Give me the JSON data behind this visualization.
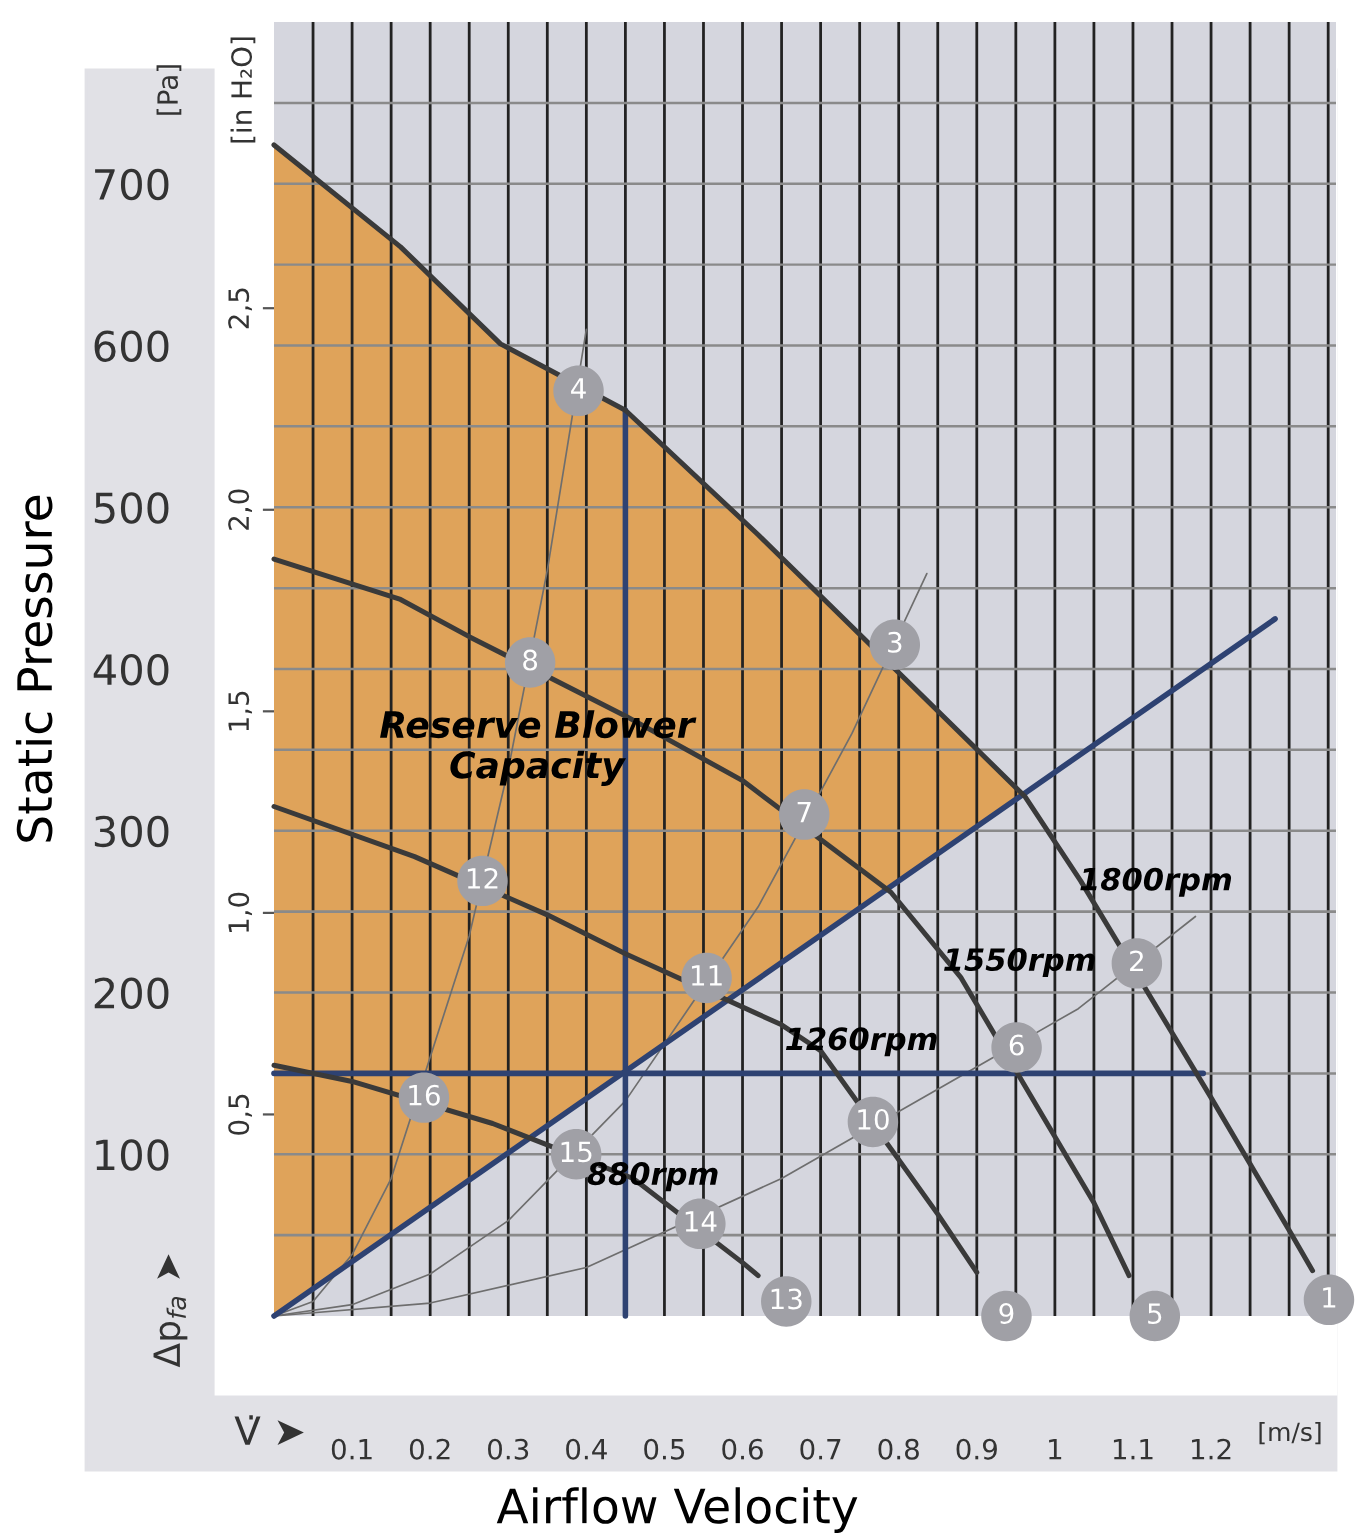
{
  "chart_data": {
    "type": "line",
    "xlabel": "Airflow Velocity",
    "ylabel": "Static Pressure",
    "xlim": [
      0,
      1.36
    ],
    "ylim": [
      0,
      800
    ],
    "y2lim": [
      0,
      3.21
    ],
    "xticks": [
      {
        "value": 0.05,
        "label": null
      },
      0.1,
      {
        "value": 0.15,
        "label": null
      },
      0.2,
      {
        "value": 0.25,
        "label": null
      },
      0.3,
      {
        "value": 0.35,
        "label": null
      },
      0.4,
      {
        "value": 0.45,
        "label": null
      },
      0.5,
      {
        "value": 0.55,
        "label": null
      },
      0.6,
      {
        "value": 0.65,
        "label": null
      },
      0.7,
      {
        "value": 0.75,
        "label": null
      },
      0.8,
      {
        "value": 0.85,
        "label": null
      },
      0.9,
      {
        "value": 0.95,
        "label": null
      },
      1,
      {
        "value": 1.05,
        "label": null
      },
      1.1,
      {
        "value": 1.15,
        "label": null
      },
      1.2,
      {
        "value": 1.25,
        "label": null
      },
      {
        "value": 1.3,
        "label": null
      },
      {
        "value": 1.35,
        "label": null
      }
    ],
    "yticks": [
      {
        "value": 50,
        "label": null
      },
      100,
      {
        "value": 150,
        "label": null
      },
      200,
      {
        "value": 250,
        "label": null
      },
      300,
      {
        "value": 350,
        "label": null
      },
      400,
      {
        "value": 450,
        "label": null
      },
      500,
      {
        "value": 550,
        "label": null
      },
      600,
      {
        "value": 650,
        "label": null
      },
      700,
      {
        "value": 750,
        "label": null
      }
    ],
    "y2ticks": [
      {
        "value": 0.5,
        "label": "0,5"
      },
      {
        "value": 1.0,
        "label": "1,0"
      },
      {
        "value": 1.5,
        "label": "1,5"
      },
      {
        "value": 2.0,
        "label": "2,0"
      },
      {
        "value": 2.5,
        "label": "2,5"
      }
    ],
    "grid": true,
    "legend": false,
    "annotations": [
      "[Pa]",
      "[in H₂O]",
      "[m/s]",
      "V̇ ➤",
      "Δp$_{fa}$ ➤",
      {
        "text": "1",
        "x": 1.351,
        "y": 10
      },
      {
        "text": "2",
        "x": 1.105,
        "y": 218
      },
      {
        "text": "3",
        "x": 0.795,
        "y": 415
      },
      {
        "text": "4",
        "x": 0.39,
        "y": 572
      },
      {
        "text": "5",
        "x": 1.128,
        "y": 0
      },
      {
        "text": "6",
        "x": 0.951,
        "y": 166
      },
      {
        "text": "7",
        "x": 0.679,
        "y": 310
      },
      {
        "text": "8",
        "x": 0.328,
        "y": 404
      },
      {
        "text": "9",
        "x": 0.938,
        "y": 0
      },
      {
        "text": "10",
        "x": 0.767,
        "y": 120
      },
      {
        "text": "11",
        "x": 0.554,
        "y": 209
      },
      {
        "text": "12",
        "x": 0.267,
        "y": 269
      },
      {
        "text": "13",
        "x": 0.656,
        "y": 9
      },
      {
        "text": "14",
        "x": 0.546,
        "y": 57
      },
      {
        "text": "15",
        "x": 0.387,
        "y": 100
      },
      {
        "text": "16",
        "x": 0.192,
        "y": 135
      }
    ],
    "series": [
      {
        "type": "area",
        "name": "Reserve Blower Capacity",
        "color": "#dfa35a",
        "x": [
          0,
          0.162,
          0.29,
          0.45,
          0.62,
          0.962
        ],
        "values": [
          724,
          661,
          601,
          560,
          483,
          321
        ]
      },
      {
        "color": "#6e6e6e",
        "x": [
          0,
          0.05,
          0.1,
          0.15,
          0.25,
          0.3,
          0.35,
          0.4
        ],
        "values": [
          0,
          9,
          38,
          85,
          235,
          338,
          461,
          610
        ]
      },
      {
        "color": "#6e6e6e",
        "x": [
          0,
          0.1,
          0.2,
          0.3,
          0.45,
          0.62,
          0.74,
          0.836
        ],
        "values": [
          0,
          7,
          26,
          59,
          133,
          253,
          360,
          459
        ]
      },
      {
        "color": "#6e6e6e",
        "x": [
          0,
          0.2,
          0.4,
          0.65,
          0.86,
          1.03,
          1.18
        ],
        "values": [
          0,
          8,
          30,
          85,
          143,
          190,
          247
        ]
      },
      {
        "color": "#2e4272",
        "x": [
          0,
          1.282
        ],
        "values": [
          0,
          431
        ]
      },
      {
        "color": "#2e4272",
        "x": [
          0,
          1.19
        ],
        "values": [
          150,
          150
        ]
      },
      {
        "color": "#2e4272",
        "x": [
          0.45,
          0.45
        ],
        "values": [
          0,
          560
        ]
      },
      {
        "name": "1800rpm",
        "color": "#3a3a3a",
        "x": [
          0,
          0.162,
          0.29,
          0.45,
          0.62,
          0.962,
          1.033,
          1.2,
          1.3,
          1.33
        ],
        "values": [
          724,
          661,
          601,
          560,
          483,
          321,
          269,
          135,
          53,
          28
        ]
      },
      {
        "name": "1550rpm",
        "color": "#3a3a3a",
        "x": [
          0,
          0.162,
          0.25,
          0.45,
          0.6,
          0.79,
          0.88,
          1.05,
          1.095
        ],
        "values": [
          468,
          443,
          420,
          371,
          331,
          262,
          209,
          70,
          25
        ]
      },
      {
        "name": "1260rpm",
        "color": "#3a3a3a",
        "x": [
          0,
          0.18,
          0.35,
          0.45,
          0.65,
          0.7,
          0.85,
          0.9
        ],
        "values": [
          315,
          284,
          248,
          224,
          180,
          164,
          63,
          27
        ]
      },
      {
        "name": "880rpm",
        "color": "#3a3a3a",
        "x": [
          0,
          0.1,
          0.28,
          0.46,
          0.6,
          0.62
        ],
        "values": [
          155,
          145,
          119,
          85,
          33,
          25
        ]
      }
    ]
  }
}
